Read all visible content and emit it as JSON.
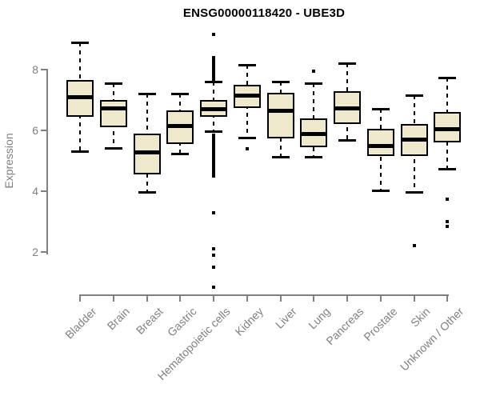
{
  "title": "ENSG00000118420 - UBE3D",
  "chart_data": {
    "type": "boxplot",
    "title": "ENSG00000118420 - UBE3D",
    "xlabel": "",
    "ylabel": "Expression",
    "yticks": [
      8,
      6,
      4,
      2
    ],
    "ylim": [
      0.5,
      9.4
    ],
    "grid": false,
    "legend": false,
    "whisker_style": "dashed",
    "outlier_marker": "small-filled-square",
    "colors": {
      "box_fill": "#EEE8CD",
      "box_border": "#000000",
      "median": "#000000",
      "whisker": "#000000",
      "axis": "#808080",
      "title_text": "#000000"
    },
    "categories": [
      "Bladder",
      "Brain",
      "Breast",
      "Gastric",
      "Hematopoietic cells",
      "Kidney",
      "Liver",
      "Lung",
      "Pancreas",
      "Prostate",
      "Skin",
      "Unknown / Other"
    ],
    "series": [
      {
        "name": "Bladder",
        "whisker_low": 5.3,
        "q1": 6.45,
        "median": 7.1,
        "q3": 7.65,
        "whisker_high": 8.9,
        "outliers": []
      },
      {
        "name": "Brain",
        "whisker_low": 5.4,
        "q1": 6.1,
        "median": 6.75,
        "q3": 7.0,
        "whisker_high": 7.55,
        "outliers": []
      },
      {
        "name": "Breast",
        "whisker_low": 3.95,
        "q1": 4.55,
        "median": 5.3,
        "q3": 5.9,
        "whisker_high": 7.2,
        "outliers": []
      },
      {
        "name": "Gastric",
        "whisker_low": 5.2,
        "q1": 5.55,
        "median": 6.15,
        "q3": 6.65,
        "whisker_high": 7.2,
        "outliers": []
      },
      {
        "name": "Hematopoietic cells",
        "whisker_low": 5.95,
        "q1": 6.45,
        "median": 6.7,
        "q3": 7.0,
        "whisker_high": 7.6,
        "outliers": [
          9.15,
          8.4,
          8.35,
          8.3,
          8.25,
          8.2,
          8.15,
          8.1,
          8.05,
          8.0,
          7.95,
          7.9,
          7.85,
          7.8,
          7.75,
          7.7,
          7.65,
          5.85,
          5.8,
          5.75,
          5.7,
          5.65,
          5.6,
          5.55,
          5.5,
          5.45,
          5.4,
          5.35,
          5.3,
          5.25,
          5.2,
          5.15,
          5.1,
          5.05,
          5.0,
          4.9,
          4.8,
          4.7,
          4.6,
          4.5,
          3.3,
          2.1,
          1.9,
          1.5,
          0.85
        ]
      },
      {
        "name": "Kidney",
        "whisker_low": 5.75,
        "q1": 6.75,
        "median": 7.15,
        "q3": 7.5,
        "whisker_high": 8.15,
        "outliers": [
          5.4
        ]
      },
      {
        "name": "Liver",
        "whisker_low": 5.1,
        "q1": 5.75,
        "median": 6.65,
        "q3": 7.25,
        "whisker_high": 7.6,
        "outliers": []
      },
      {
        "name": "Lung",
        "whisker_low": 5.1,
        "q1": 5.45,
        "median": 5.9,
        "q3": 6.4,
        "whisker_high": 7.55,
        "outliers": [
          7.95
        ]
      },
      {
        "name": "Pancreas",
        "whisker_low": 5.65,
        "q1": 6.2,
        "median": 6.75,
        "q3": 7.3,
        "whisker_high": 8.2,
        "outliers": []
      },
      {
        "name": "Prostate",
        "whisker_low": 4.0,
        "q1": 5.15,
        "median": 5.5,
        "q3": 6.05,
        "whisker_high": 6.7,
        "outliers": []
      },
      {
        "name": "Skin",
        "whisker_low": 3.95,
        "q1": 5.15,
        "median": 5.7,
        "q3": 6.2,
        "whisker_high": 7.15,
        "outliers": [
          2.2
        ]
      },
      {
        "name": "Unknown / Other",
        "whisker_low": 4.7,
        "q1": 5.6,
        "median": 6.05,
        "q3": 6.6,
        "whisker_high": 7.75,
        "outliers": [
          3.75,
          3.0,
          2.85
        ]
      }
    ]
  }
}
